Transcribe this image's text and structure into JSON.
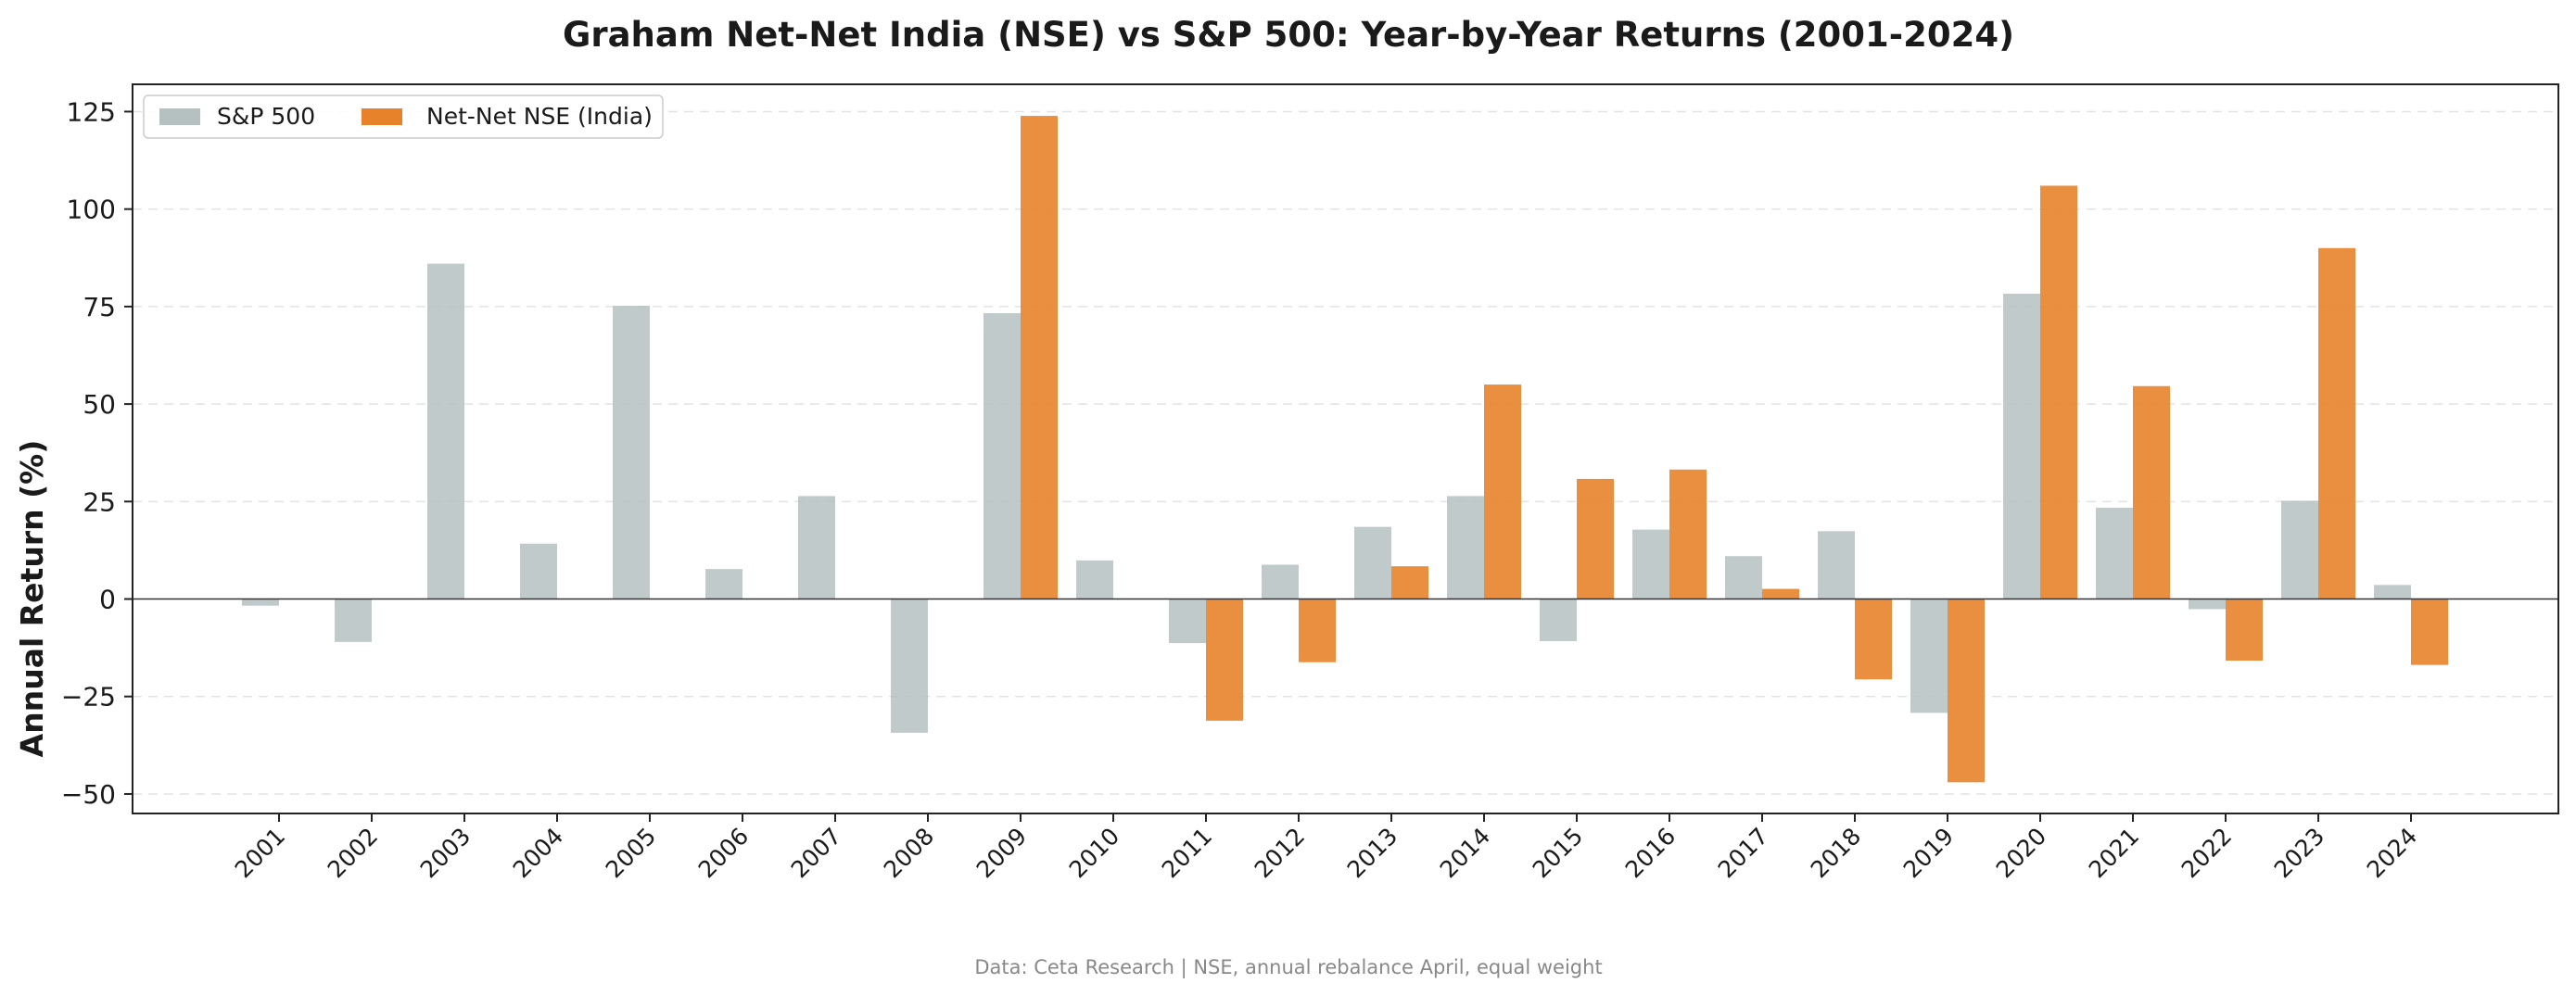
{
  "chart_data": {
    "type": "bar",
    "title": "Graham Net-Net India (NSE) vs S&P 500: Year-by-Year Returns (2001-2024)",
    "xlabel": "",
    "ylabel": "Annual Return (%)",
    "ylim": [
      -55,
      132
    ],
    "yticks": [
      -50,
      -25,
      0,
      25,
      50,
      75,
      100,
      125
    ],
    "ytick_labels": [
      "−50",
      "−25",
      "0",
      "25",
      "50",
      "75",
      "100",
      "125"
    ],
    "grid": true,
    "legend_position": "top-left",
    "categories": [
      "2001",
      "2002",
      "2003",
      "2004",
      "2005",
      "2006",
      "2007",
      "2008",
      "2009",
      "2010",
      "2011",
      "2012",
      "2013",
      "2014",
      "2015",
      "2016",
      "2017",
      "2018",
      "2019",
      "2020",
      "2021",
      "2022",
      "2023",
      "2024"
    ],
    "series": [
      {
        "name": "S&P 500",
        "color": "#b5c1c1",
        "values": [
          -1.7,
          -11,
          86,
          14.2,
          75.2,
          7.7,
          26.4,
          -34.3,
          73.3,
          9.9,
          -11.3,
          8.8,
          18.5,
          26.4,
          -10.8,
          17.8,
          11.0,
          17.4,
          -29.2,
          78.3,
          23.4,
          -2.6,
          25.2,
          3.6
        ]
      },
      {
        "name": "Net-Net NSE (India)",
        "color": "#e8822a",
        "values": [
          0,
          0,
          0,
          0,
          0,
          0,
          0,
          0,
          123.9,
          0,
          -31.2,
          -16.2,
          8.4,
          55.0,
          30.8,
          33.2,
          2.6,
          -20.6,
          -47.0,
          106.0,
          54.6,
          -15.8,
          90.0,
          -16.9
        ]
      }
    ],
    "footer": "Data: Ceta Research | NSE, annual rebalance April, equal weight"
  }
}
